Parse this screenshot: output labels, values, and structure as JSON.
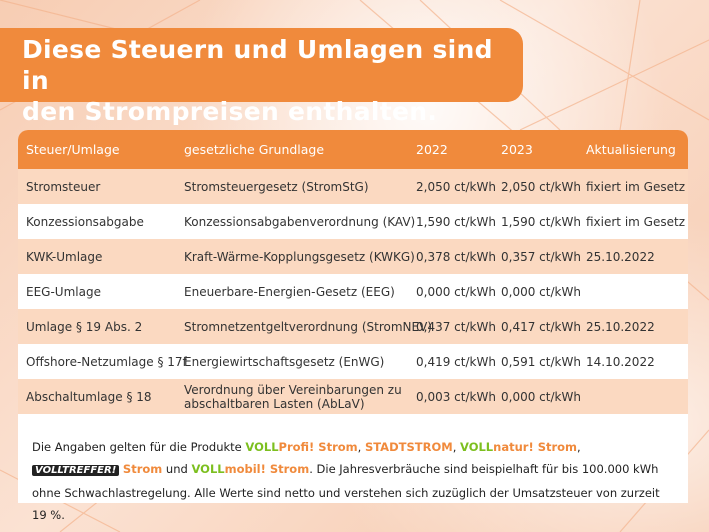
{
  "title_lines": [
    "Diese Steuern und Umlagen sind in",
    "den Strompreisen enthalten."
  ],
  "table": {
    "headers": [
      "Steuer/Umlage",
      "gesetzliche Grundlage",
      "2022",
      "2023",
      "Aktualisierung"
    ],
    "rows": [
      [
        "Stromsteuer",
        "Stromsteuergesetz (StromStG)",
        "2,050 ct/kWh",
        "2,050 ct/kWh",
        "fixiert im Gesetz"
      ],
      [
        "Konzessionsabgabe",
        "Konzessionsabgabenverordnung (KAV)",
        "1,590 ct/kWh",
        "1,590 ct/kWh",
        "fixiert im Gesetz"
      ],
      [
        "KWK-Umlage",
        "Kraft-Wärme-Kopplungsgesetz (KWKG)",
        "0,378 ct/kWh",
        "0,357 ct/kWh",
        "25.10.2022"
      ],
      [
        "EEG-Umlage",
        "Eneuerbare-Energien-Gesetz (EEG)",
        "0,000 ct/kWh",
        "0,000 ct/kWh",
        ""
      ],
      [
        "Umlage § 19 Abs. 2",
        "Stromnetzentgeltverordnung (StromNEV)",
        "0,437 ct/kWh",
        "0,417 ct/kWh",
        "25.10.2022"
      ],
      [
        "Offshore-Netzumlage § 17f",
        "Energiewirtschaftsgesetz (EnWG)",
        "0,419 ct/kWh",
        "0,591 ct/kWh",
        "14.10.2022"
      ],
      [
        "Abschaltumlage § 18",
        "Verordnung über Vereinbarungen zu abschaltbaren Lasten (AbLaV)",
        "0,003 ct/kWh",
        "0,000 ct/kWh",
        ""
      ]
    ]
  },
  "footnote": {
    "intro": "Die Angaben gelten für die Produkte ",
    "p1_a": "VOLL",
    "p1_b": "Profi! Strom",
    "sep1": ", ",
    "p2": "STADTSTROM",
    "sep2": ", ",
    "p3_a": "VOLL",
    "p3_b": "natur! Strom",
    "sep3": ",",
    "p4_a": "VOLLTREFFER!",
    "p4_b": "Strom",
    "and": " und ",
    "p5_a": "VOLL",
    "p5_b": "mobil! Strom",
    "rest1": ". Die Jahresverbräuche sind beispielhaft für bis 100.000 kWh",
    "rest2": "ohne Schwachlastregelung. Alle Werte sind netto und verstehen sich zuzüglich der Umsatzsteuer von zurzeit 19 %."
  },
  "colors": {
    "accent": "#f08a3c",
    "row_tint": "#fbd9c1",
    "brand_green": "#7cbf1f"
  }
}
